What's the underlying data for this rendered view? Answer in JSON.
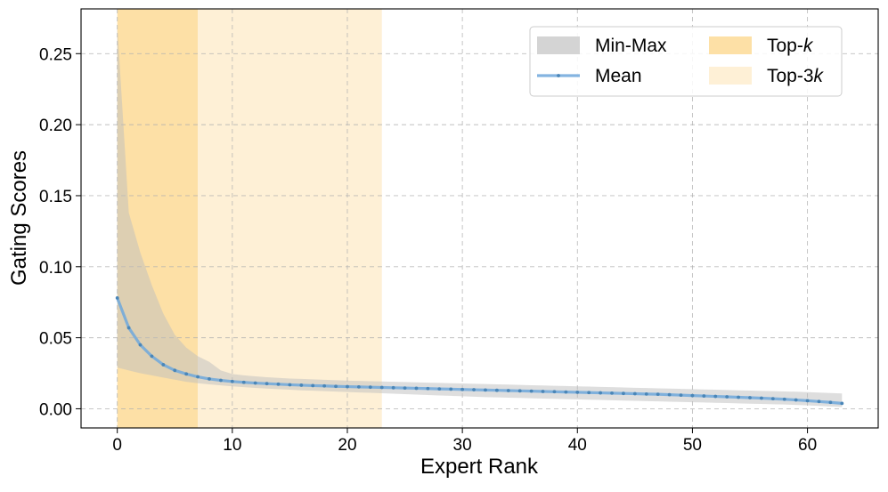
{
  "chart_data": {
    "type": "line",
    "xlabel": "Expert Rank",
    "ylabel": "Gating Scores",
    "xlim": [
      -3.15,
      66.15
    ],
    "ylim": [
      -0.0135,
      0.2815
    ],
    "grid": true,
    "legend_placement": "top-right",
    "x_ticks": [
      0,
      10,
      20,
      30,
      40,
      50,
      60
    ],
    "x_tick_labels": [
      "0",
      "10",
      "20",
      "30",
      "40",
      "50",
      "60"
    ],
    "y_ticks": [
      0.0,
      0.05,
      0.1,
      0.15,
      0.2,
      0.25
    ],
    "y_tick_labels": [
      "0.00",
      "0.05",
      "0.10",
      "0.15",
      "0.20",
      "0.25"
    ],
    "highlight_regions": [
      {
        "name": "Top-k",
        "name_prefix": "Top-",
        "name_italic": "k",
        "x_start": 0,
        "x_end": 7,
        "color": "#fde0a6"
      },
      {
        "name": "Top-3k",
        "name_prefix": "Top-3",
        "name_italic": "k",
        "x_start": 7,
        "x_end": 23,
        "color": "#fef0d6"
      }
    ],
    "series": [
      {
        "name": "Mean",
        "color": "#6fa8dc",
        "marker_color": "#4a86b8",
        "x": [
          0,
          1,
          2,
          3,
          4,
          5,
          6,
          7,
          8,
          9,
          10,
          11,
          12,
          13,
          14,
          15,
          16,
          17,
          18,
          19,
          20,
          21,
          22,
          23,
          24,
          25,
          26,
          27,
          28,
          29,
          30,
          31,
          32,
          33,
          34,
          35,
          36,
          37,
          38,
          39,
          40,
          41,
          42,
          43,
          44,
          45,
          46,
          47,
          48,
          49,
          50,
          51,
          52,
          53,
          54,
          55,
          56,
          57,
          58,
          59,
          60,
          61,
          62,
          63
        ],
        "values": [
          0.078,
          0.057,
          0.045,
          0.037,
          0.031,
          0.027,
          0.0245,
          0.0225,
          0.021,
          0.02,
          0.0192,
          0.0186,
          0.0181,
          0.0177,
          0.0173,
          0.0169,
          0.0166,
          0.0163,
          0.0161,
          0.0158,
          0.0156,
          0.0154,
          0.0152,
          0.015,
          0.0148,
          0.0146,
          0.0144,
          0.0142,
          0.014,
          0.0138,
          0.0136,
          0.0134,
          0.0132,
          0.013,
          0.0128,
          0.0126,
          0.0124,
          0.0122,
          0.012,
          0.0118,
          0.0116,
          0.0114,
          0.0112,
          0.011,
          0.0108,
          0.0106,
          0.0104,
          0.0102,
          0.0099,
          0.0096,
          0.0093,
          0.009,
          0.0087,
          0.0084,
          0.0081,
          0.0078,
          0.0075,
          0.0071,
          0.0067,
          0.0062,
          0.0057,
          0.0051,
          0.0045,
          0.0038
        ]
      },
      {
        "name": "Min-Max",
        "color": "#d9d9d9",
        "type": "band",
        "x": [
          0,
          1,
          2,
          3,
          4,
          5,
          6,
          7,
          8,
          9,
          10,
          11,
          12,
          13,
          14,
          15,
          16,
          17,
          18,
          19,
          20,
          21,
          22,
          23,
          24,
          25,
          26,
          27,
          28,
          29,
          30,
          31,
          32,
          33,
          34,
          35,
          36,
          37,
          38,
          39,
          40,
          41,
          42,
          43,
          44,
          45,
          46,
          47,
          48,
          49,
          50,
          51,
          52,
          53,
          54,
          55,
          56,
          57,
          58,
          59,
          60,
          61,
          62,
          63
        ],
        "lower": [
          0.029,
          0.027,
          0.025,
          0.0235,
          0.022,
          0.0205,
          0.019,
          0.018,
          0.0172,
          0.0165,
          0.0158,
          0.0152,
          0.0147,
          0.0142,
          0.0138,
          0.0134,
          0.013,
          0.0127,
          0.0124,
          0.0121,
          0.0118,
          0.0115,
          0.0112,
          0.0109,
          0.0106,
          0.0103,
          0.01,
          0.0097,
          0.0094,
          0.0091,
          0.0088,
          0.0085,
          0.0082,
          0.008,
          0.0078,
          0.0076,
          0.0074,
          0.0072,
          0.007,
          0.0068,
          0.0066,
          0.0064,
          0.0062,
          0.006,
          0.0058,
          0.0056,
          0.0054,
          0.0052,
          0.005,
          0.0048,
          0.0046,
          0.0044,
          0.0042,
          0.004,
          0.0038,
          0.0036,
          0.0034,
          0.0032,
          0.003,
          0.0027,
          0.0024,
          0.002,
          0.0016,
          0.0012
        ],
        "upper": [
          0.27,
          0.138,
          0.11,
          0.087,
          0.067,
          0.052,
          0.043,
          0.037,
          0.033,
          0.027,
          0.0245,
          0.0235,
          0.0228,
          0.0222,
          0.0217,
          0.0213,
          0.021,
          0.0207,
          0.0204,
          0.0201,
          0.0198,
          0.0196,
          0.0194,
          0.0192,
          0.019,
          0.0188,
          0.0186,
          0.0184,
          0.0182,
          0.018,
          0.0178,
          0.0176,
          0.0174,
          0.0172,
          0.017,
          0.0168,
          0.0166,
          0.0164,
          0.0162,
          0.016,
          0.0158,
          0.0156,
          0.0154,
          0.0152,
          0.015,
          0.0148,
          0.0146,
          0.0144,
          0.0142,
          0.014,
          0.0138,
          0.0136,
          0.0134,
          0.0132,
          0.013,
          0.0128,
          0.0126,
          0.0124,
          0.0122,
          0.012,
          0.0117,
          0.0114,
          0.0111,
          0.0108
        ]
      }
    ],
    "legend": [
      {
        "label": "Min-Max",
        "kind": "band",
        "color": "#d9d9d9"
      },
      {
        "label": "Top-k",
        "prefix": "Top-",
        "italic": "k",
        "kind": "region",
        "color": "#fde0a6"
      },
      {
        "label": "Mean",
        "kind": "line",
        "color": "#6fa8dc"
      },
      {
        "label": "Top-3k",
        "prefix": "Top-3",
        "italic": "k",
        "kind": "region",
        "color": "#fef0d6"
      }
    ]
  }
}
